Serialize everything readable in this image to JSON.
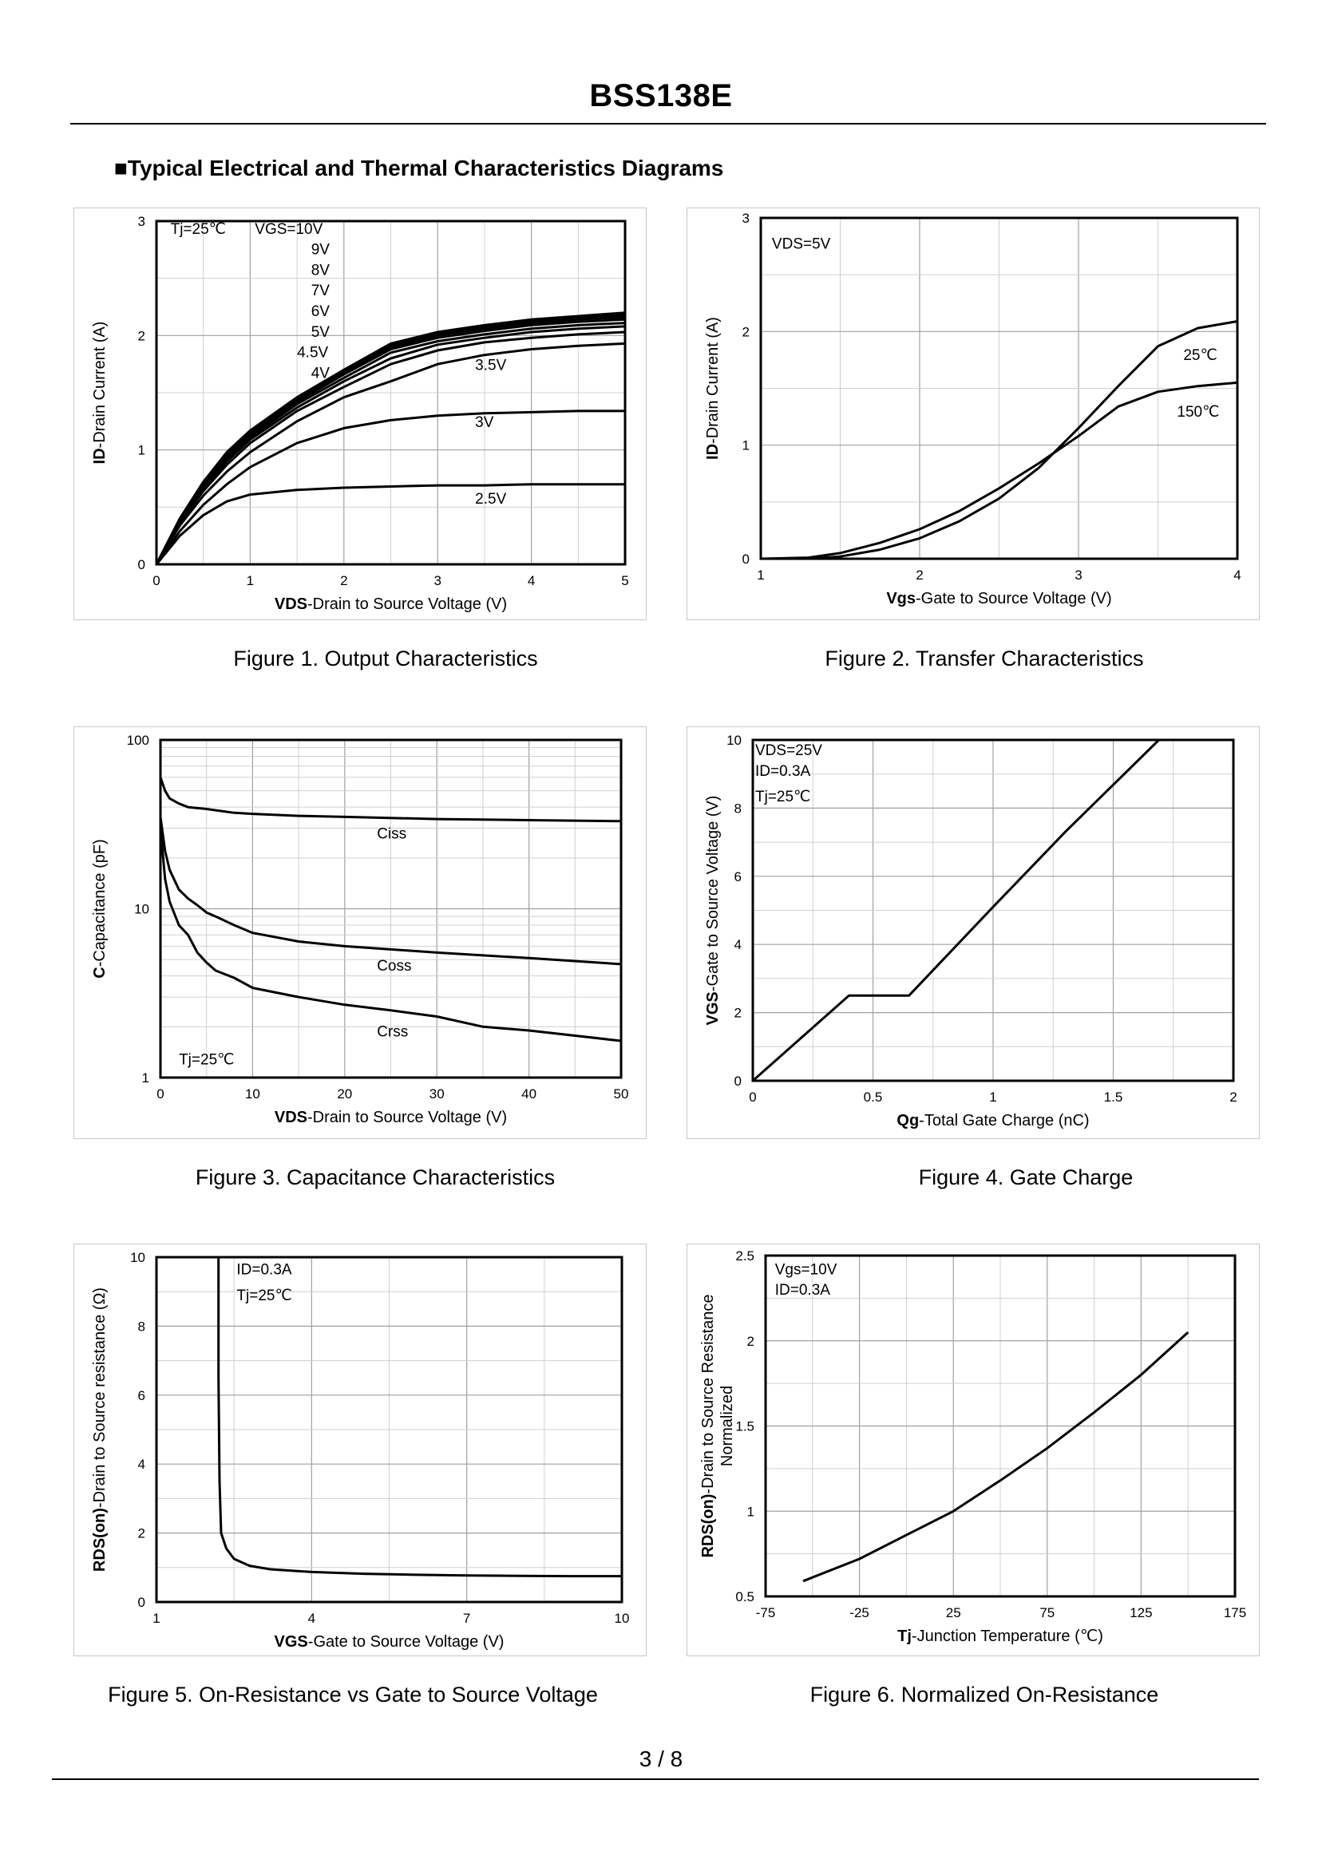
{
  "header": {
    "title": "BSS138E"
  },
  "section_title": "■Typical Electrical and Thermal Characteristics Diagrams",
  "footer": {
    "page": "3 / 8"
  },
  "colors": {
    "line": "#000000",
    "grid": "#a0a0a0",
    "minor_grid": "#d0d0d0",
    "panel_border": "#c8c8c8"
  },
  "chart_data": [
    {
      "id": "fig1",
      "type": "line",
      "caption": "Figure 1.  Output Characteristics",
      "xlabel_bold": "VDS",
      "xlabel_rest": "-Drain to Source Voltage (V)",
      "ylabel_bold": "ID",
      "ylabel_rest": "-Drain Current  (A)",
      "xlim": [
        0,
        5
      ],
      "ylim": [
        0,
        3
      ],
      "xticks": [
        "0",
        "1",
        "2",
        "3",
        "4",
        "5"
      ],
      "yticks": [
        "0",
        "1",
        "2",
        "3"
      ],
      "grid": {
        "x_minor": 2,
        "y_minor": 2
      },
      "annotations": [
        {
          "text": "Tj=25℃",
          "x": 0.15,
          "y": 2.89
        },
        {
          "text": "VGS=10V",
          "x": 1.05,
          "y": 2.89
        },
        {
          "text": "9V",
          "x": 1.65,
          "y": 2.71
        },
        {
          "text": "8V",
          "x": 1.65,
          "y": 2.53
        },
        {
          "text": "7V",
          "x": 1.65,
          "y": 2.35
        },
        {
          "text": "6V",
          "x": 1.65,
          "y": 2.17
        },
        {
          "text": "5V",
          "x": 1.65,
          "y": 1.99
        },
        {
          "text": "4.5V",
          "x": 1.5,
          "y": 1.81
        },
        {
          "text": "4V",
          "x": 1.65,
          "y": 1.63
        },
        {
          "text": "3.5V",
          "x": 3.4,
          "y": 1.7
        },
        {
          "text": "3V",
          "x": 3.4,
          "y": 1.2
        },
        {
          "text": "2.5V",
          "x": 3.4,
          "y": 0.53
        }
      ],
      "series": [
        {
          "name": "VGS=10V",
          "x": [
            0,
            0.25,
            0.5,
            0.75,
            1,
            1.5,
            2,
            2.5,
            3,
            3.5,
            4,
            4.5,
            5
          ],
          "y": [
            0,
            0.4,
            0.72,
            0.98,
            1.17,
            1.46,
            1.7,
            1.93,
            2.03,
            2.09,
            2.14,
            2.17,
            2.2
          ]
        },
        {
          "name": "VGS=9V",
          "x": [
            0,
            0.25,
            0.5,
            0.75,
            1,
            1.5,
            2,
            2.5,
            3,
            3.5,
            4,
            4.5,
            5
          ],
          "y": [
            0,
            0.4,
            0.72,
            0.97,
            1.16,
            1.45,
            1.69,
            1.92,
            2.02,
            2.08,
            2.13,
            2.16,
            2.18
          ]
        },
        {
          "name": "VGS=8V",
          "x": [
            0,
            0.25,
            0.5,
            0.75,
            1,
            1.5,
            2,
            2.5,
            3,
            3.5,
            4,
            4.5,
            5
          ],
          "y": [
            0,
            0.4,
            0.71,
            0.96,
            1.15,
            1.44,
            1.68,
            1.91,
            2.01,
            2.07,
            2.12,
            2.15,
            2.17
          ]
        },
        {
          "name": "VGS=7V",
          "x": [
            0,
            0.25,
            0.5,
            0.75,
            1,
            1.5,
            2,
            2.5,
            3,
            3.5,
            4,
            4.5,
            5
          ],
          "y": [
            0,
            0.39,
            0.7,
            0.95,
            1.14,
            1.43,
            1.67,
            1.9,
            2.0,
            2.06,
            2.11,
            2.14,
            2.16
          ]
        },
        {
          "name": "VGS=6V",
          "x": [
            0,
            0.25,
            0.5,
            0.75,
            1,
            1.5,
            2,
            2.5,
            3,
            3.5,
            4,
            4.5,
            5
          ],
          "y": [
            0,
            0.39,
            0.69,
            0.94,
            1.13,
            1.42,
            1.66,
            1.88,
            1.98,
            2.04,
            2.09,
            2.12,
            2.14
          ]
        },
        {
          "name": "VGS=5V",
          "x": [
            0,
            0.25,
            0.5,
            0.75,
            1,
            1.5,
            2,
            2.5,
            3,
            3.5,
            4,
            4.5,
            5
          ],
          "y": [
            0,
            0.38,
            0.68,
            0.92,
            1.11,
            1.4,
            1.63,
            1.85,
            1.95,
            2.01,
            2.06,
            2.09,
            2.11
          ]
        },
        {
          "name": "VGS=4.5V",
          "x": [
            0,
            0.25,
            0.5,
            0.75,
            1,
            1.5,
            2,
            2.5,
            3,
            3.5,
            4,
            4.5,
            5
          ],
          "y": [
            0,
            0.37,
            0.66,
            0.9,
            1.09,
            1.37,
            1.6,
            1.8,
            1.92,
            1.98,
            2.03,
            2.06,
            2.08
          ]
        },
        {
          "name": "VGS=4V",
          "x": [
            0,
            0.25,
            0.5,
            0.75,
            1,
            1.5,
            2,
            2.5,
            3,
            3.5,
            4,
            4.5,
            5
          ],
          "y": [
            0,
            0.36,
            0.64,
            0.87,
            1.06,
            1.34,
            1.55,
            1.75,
            1.87,
            1.94,
            1.98,
            2.01,
            2.03
          ]
        },
        {
          "name": "VGS=3.5V",
          "x": [
            0,
            0.25,
            0.5,
            0.75,
            1,
            1.5,
            2,
            2.5,
            3,
            3.5,
            4,
            4.5,
            5
          ],
          "y": [
            0,
            0.34,
            0.6,
            0.81,
            0.98,
            1.25,
            1.46,
            1.6,
            1.75,
            1.83,
            1.88,
            1.91,
            1.93
          ]
        },
        {
          "name": "VGS=3V",
          "x": [
            0,
            0.25,
            0.5,
            0.75,
            1,
            1.5,
            2,
            2.5,
            3,
            3.5,
            4,
            4.5,
            5
          ],
          "y": [
            0,
            0.29,
            0.52,
            0.7,
            0.85,
            1.06,
            1.19,
            1.26,
            1.3,
            1.32,
            1.33,
            1.34,
            1.34
          ]
        },
        {
          "name": "VGS=2.5V",
          "x": [
            0,
            0.25,
            0.5,
            0.75,
            1,
            1.5,
            2,
            2.5,
            3,
            3.5,
            4,
            4.5,
            5
          ],
          "y": [
            0,
            0.25,
            0.43,
            0.55,
            0.61,
            0.65,
            0.67,
            0.68,
            0.69,
            0.69,
            0.7,
            0.7,
            0.7
          ]
        }
      ]
    },
    {
      "id": "fig2",
      "type": "line",
      "caption": "Figure 2.  Transfer Characteristics",
      "xlabel_bold": "Vgs",
      "xlabel_rest": "-Gate to Source Voltage (V)",
      "ylabel_bold": "ID",
      "ylabel_rest": "-Drain Current  (A)",
      "xlim": [
        1,
        4
      ],
      "ylim": [
        0,
        3
      ],
      "xticks": [
        "1",
        "2",
        "3",
        "4"
      ],
      "yticks": [
        "0",
        "1",
        "2",
        "3"
      ],
      "grid": {
        "x_minor": 2,
        "y_minor": 2
      },
      "annotations": [
        {
          "text": "VDS=5V",
          "x": 1.07,
          "y": 2.73
        },
        {
          "text": "25℃",
          "x": 3.66,
          "y": 1.75
        },
        {
          "text": "150℃",
          "x": 3.62,
          "y": 1.25
        }
      ],
      "series": [
        {
          "name": "25℃",
          "x": [
            1,
            1.3,
            1.5,
            1.75,
            2,
            2.25,
            2.5,
            2.75,
            3,
            3.25,
            3.5,
            3.75,
            4
          ],
          "y": [
            0,
            0,
            0.02,
            0.08,
            0.18,
            0.33,
            0.53,
            0.8,
            1.15,
            1.52,
            1.87,
            2.03,
            2.09
          ]
        },
        {
          "name": "150℃",
          "x": [
            1,
            1.3,
            1.5,
            1.75,
            2,
            2.25,
            2.5,
            2.75,
            3,
            3.25,
            3.5,
            3.75,
            4
          ],
          "y": [
            0,
            0.01,
            0.05,
            0.14,
            0.26,
            0.42,
            0.62,
            0.84,
            1.08,
            1.34,
            1.47,
            1.52,
            1.55
          ]
        }
      ]
    },
    {
      "id": "fig3",
      "type": "line",
      "caption": "Figure 3.  Capacitance Characteristics",
      "xlabel_bold": "VDS",
      "xlabel_rest": "-Drain to Source Voltage (V)",
      "ylabel_bold": "C",
      "ylabel_rest": "-Capacitance (pF)",
      "xlim": [
        0,
        50
      ],
      "ylim": [
        1,
        100
      ],
      "yscale": "log",
      "xticks": [
        "0",
        "10",
        "20",
        "30",
        "40",
        "50"
      ],
      "yticks": [
        "1",
        "10",
        "100"
      ],
      "grid": {
        "x_minor": 2
      },
      "annotations": [
        {
          "text": "Ciss",
          "x": 23.5,
          "y": 26
        },
        {
          "text": "Coss",
          "x": 23.5,
          "y": 4.3
        },
        {
          "text": "Crss",
          "x": 23.5,
          "y": 1.75
        },
        {
          "text": "Tj=25℃",
          "x": 2,
          "y": 1.2
        }
      ],
      "series": [
        {
          "name": "Ciss",
          "x": [
            0,
            0.5,
            1,
            2,
            3,
            5,
            8,
            10,
            15,
            20,
            30,
            40,
            50
          ],
          "y": [
            60,
            50,
            45,
            42,
            40,
            39,
            37,
            36.5,
            35.5,
            35,
            34,
            33.5,
            33
          ]
        },
        {
          "name": "Coss",
          "x": [
            0,
            0.5,
            1,
            2,
            3,
            4,
            5,
            6,
            8,
            10,
            15,
            20,
            30,
            40,
            50
          ],
          "y": [
            35,
            22,
            17,
            13,
            11.5,
            10.5,
            9.5,
            9,
            8,
            7.2,
            6.4,
            6,
            5.5,
            5.1,
            4.7
          ]
        },
        {
          "name": "Crss",
          "x": [
            0,
            0.5,
            1,
            2,
            3,
            4,
            5,
            6,
            8,
            10,
            15,
            20,
            25,
            30,
            35,
            40,
            50
          ],
          "y": [
            30,
            15,
            11,
            8,
            7,
            5.5,
            4.8,
            4.3,
            3.9,
            3.4,
            3,
            2.7,
            2.5,
            2.3,
            2,
            1.9,
            1.65
          ]
        }
      ]
    },
    {
      "id": "fig4",
      "type": "line",
      "caption": "Figure 4.  Gate Charge",
      "xlabel_bold": "Qg",
      "xlabel_rest": "-Total Gate Charge (nC)",
      "ylabel_bold": "VGS",
      "ylabel_rest": "-Gate to Source Voltage (V)",
      "xlim": [
        0,
        2
      ],
      "ylim": [
        0,
        10
      ],
      "xticks": [
        "0",
        "0.5",
        "1",
        "1.5",
        "2"
      ],
      "yticks": [
        "0",
        "2",
        "4",
        "6",
        "8",
        "10"
      ],
      "grid": {
        "x_minor": 2,
        "y_minor": 2
      },
      "annotations": [
        {
          "text": "VDS=25V",
          "x": 0.01,
          "y": 9.55
        },
        {
          "text": "ID=0.3A",
          "x": 0.01,
          "y": 8.95
        },
        {
          "text": "Tj=25℃",
          "x": 0.01,
          "y": 8.2
        }
      ],
      "series": [
        {
          "name": "VGS",
          "x": [
            0,
            0.4,
            0.65,
            1,
            1.3,
            1.69
          ],
          "y": [
            0,
            2.5,
            2.5,
            5.1,
            7.3,
            10
          ]
        }
      ]
    },
    {
      "id": "fig5",
      "type": "line",
      "caption": "Figure 5.  On-Resistance vs Gate to Source Voltage",
      "xlabel_bold": "VGS",
      "xlabel_rest": "-Gate to Source Voltage (V)",
      "ylabel_bold": "RDS(on)",
      "ylabel_rest": "-Drain to Source resistance (Ω)",
      "xlim": [
        1,
        10
      ],
      "ylim": [
        0,
        10
      ],
      "xticks": [
        "1",
        "4",
        "7",
        "10"
      ],
      "xtick_values": [
        1,
        4,
        7,
        10
      ],
      "yticks": [
        "0",
        "2",
        "4",
        "6",
        "8",
        "10"
      ],
      "grid": {
        "x_minor": 2,
        "y_minor": 2
      },
      "annotations": [
        {
          "text": "ID=0.3A",
          "x": 2.55,
          "y": 9.5
        },
        {
          "text": "Tj=25℃",
          "x": 2.55,
          "y": 8.75
        }
      ],
      "series": [
        {
          "name": "RDS(on)",
          "x": [
            2.2,
            2.2,
            2.22,
            2.25,
            2.35,
            2.5,
            2.8,
            3.2,
            4,
            5,
            6,
            7,
            8,
            9,
            10
          ],
          "y": [
            10,
            6.5,
            3.5,
            2.0,
            1.55,
            1.25,
            1.05,
            0.95,
            0.87,
            0.82,
            0.79,
            0.77,
            0.76,
            0.75,
            0.75
          ]
        }
      ]
    },
    {
      "id": "fig6",
      "type": "line",
      "caption": "Figure 6.  Normalized On-Resistance",
      "xlabel_bold": "Tj",
      "xlabel_rest": "-Junction  Temperature  (℃)",
      "ylabel_bold": "RDS(on)",
      "ylabel_rest": "-Drain to Source Resistance",
      "ylabel2": "Normalized",
      "xlim": [
        -75,
        175
      ],
      "ylim": [
        0.5,
        2.5
      ],
      "xticks": [
        "-75",
        "-25",
        "25",
        "75",
        "125",
        "175"
      ],
      "yticks": [
        "0.5",
        "1",
        "1.5",
        "2",
        "2.5"
      ],
      "grid": {
        "x_minor": 2,
        "y_minor": 2
      },
      "annotations": [
        {
          "text": "Vgs=10V",
          "x": -70,
          "y": 2.39
        },
        {
          "text": "ID=0.3A",
          "x": -70,
          "y": 2.27
        }
      ],
      "series": [
        {
          "name": "RDS(on) normalized",
          "x": [
            -55,
            -25,
            0,
            25,
            50,
            75,
            100,
            125,
            150
          ],
          "y": [
            0.59,
            0.72,
            0.86,
            1.0,
            1.18,
            1.37,
            1.58,
            1.8,
            2.05
          ]
        }
      ]
    }
  ]
}
